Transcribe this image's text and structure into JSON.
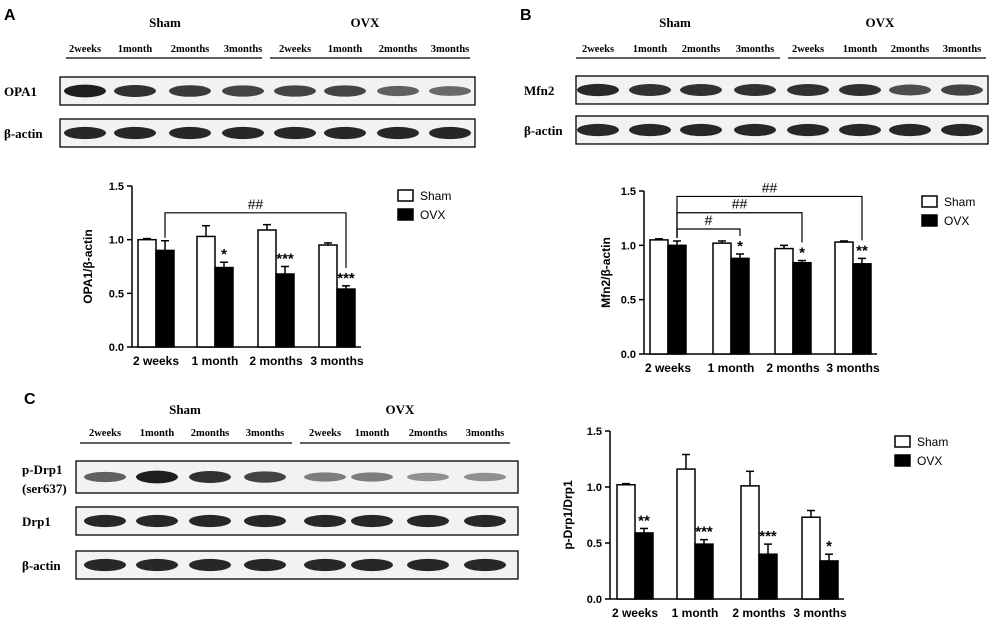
{
  "panels": [
    {
      "letter": "A",
      "group_labels": [
        "Sham",
        "OVX"
      ],
      "lane_labels": [
        "2weeks",
        "1month",
        "2months",
        "3months",
        "2weeks",
        "1month",
        "2months",
        "3months"
      ],
      "blots": [
        {
          "label": "OPA1",
          "intensities": [
            0.95,
            0.85,
            0.8,
            0.75,
            0.75,
            0.75,
            0.6,
            0.55
          ]
        },
        {
          "label": "β-actin",
          "intensities": [
            0.9,
            0.9,
            0.9,
            0.9,
            0.9,
            0.9,
            0.9,
            0.9
          ]
        }
      ]
    },
    {
      "letter": "B",
      "group_labels": [
        "Sham",
        "OVX"
      ],
      "lane_labels": [
        "2weeks",
        "1month",
        "2months",
        "3months",
        "2weeks",
        "1month",
        "2months",
        "3months"
      ],
      "blots": [
        {
          "label": "Mfn2",
          "intensities": [
            0.9,
            0.85,
            0.85,
            0.85,
            0.85,
            0.85,
            0.7,
            0.75
          ]
        },
        {
          "label": "β-actin",
          "intensities": [
            0.9,
            0.9,
            0.9,
            0.9,
            0.9,
            0.9,
            0.9,
            0.9
          ]
        }
      ]
    },
    {
      "letter": "C",
      "group_labels": [
        "Sham",
        "OVX"
      ],
      "lane_labels": [
        "2weeks",
        "1month",
        "2months",
        "3months",
        "2weeks",
        "1month",
        "2months",
        "3months"
      ],
      "blots": [
        {
          "label": "p-Drp1",
          "label2": "(ser637)",
          "intensities": [
            0.6,
            0.95,
            0.85,
            0.75,
            0.45,
            0.45,
            0.35,
            0.35
          ]
        },
        {
          "label": "Drp1",
          "intensities": [
            0.9,
            0.9,
            0.9,
            0.9,
            0.9,
            0.9,
            0.9,
            0.9
          ]
        },
        {
          "label": "β-actin",
          "intensities": [
            0.9,
            0.9,
            0.9,
            0.9,
            0.9,
            0.9,
            0.9,
            0.9
          ]
        }
      ]
    }
  ],
  "chart_data": [
    {
      "type": "bar",
      "title": "",
      "xlabel": "",
      "ylabel": "OPA1/β-actin",
      "ylim": [
        0,
        1.5
      ],
      "yticks": [
        "0.0",
        "0.5",
        "1.0",
        "1.5"
      ],
      "categories": [
        "2 weeks",
        "1 month",
        "2 months",
        "3 months"
      ],
      "series": [
        {
          "name": "Sham",
          "values": [
            1.0,
            1.03,
            1.09,
            0.95
          ],
          "errors": [
            0.01,
            0.1,
            0.05,
            0.02
          ]
        },
        {
          "name": "OVX",
          "values": [
            0.9,
            0.74,
            0.68,
            0.54
          ],
          "errors": [
            0.09,
            0.05,
            0.07,
            0.03
          ],
          "annotations": [
            "",
            "*",
            "***",
            "***"
          ]
        }
      ],
      "brackets": [
        {
          "label": "##",
          "from": 0,
          "to": 3,
          "y": 1.25
        }
      ],
      "legend": "top-right"
    },
    {
      "type": "bar",
      "title": "",
      "xlabel": "",
      "ylabel": "Mfn2/β-actin",
      "ylim": [
        0,
        1.5
      ],
      "yticks": [
        "0.0",
        "0.5",
        "1.0",
        "1.5"
      ],
      "categories": [
        "2 weeks",
        "1 month",
        "2 months",
        "3 months"
      ],
      "series": [
        {
          "name": "Sham",
          "values": [
            1.05,
            1.02,
            0.97,
            1.03
          ],
          "errors": [
            0.01,
            0.02,
            0.03,
            0.01
          ]
        },
        {
          "name": "OVX",
          "values": [
            1.0,
            0.88,
            0.84,
            0.83
          ],
          "errors": [
            0.04,
            0.04,
            0.02,
            0.05
          ],
          "annotations": [
            "",
            "*",
            "*",
            "**"
          ]
        }
      ],
      "brackets": [
        {
          "label": "#",
          "from": 0,
          "to": 1,
          "y": 1.15
        },
        {
          "label": "##",
          "from": 0,
          "to": 2,
          "y": 1.3
        },
        {
          "label": "##",
          "from": 0,
          "to": 3,
          "y": 1.45
        }
      ],
      "legend": "top-right"
    },
    {
      "type": "bar",
      "title": "",
      "xlabel": "",
      "ylabel": "p-Drp1/Drp1",
      "ylim": [
        0,
        1.5
      ],
      "yticks": [
        "0.0",
        "0.5",
        "1.0",
        "1.5"
      ],
      "categories": [
        "2 weeks",
        "1 month",
        "2 months",
        "3 months"
      ],
      "series": [
        {
          "name": "Sham",
          "values": [
            1.02,
            1.16,
            1.01,
            0.73
          ],
          "errors": [
            0.01,
            0.13,
            0.13,
            0.06
          ]
        },
        {
          "name": "OVX",
          "values": [
            0.59,
            0.49,
            0.4,
            0.34
          ],
          "errors": [
            0.04,
            0.04,
            0.09,
            0.06
          ],
          "annotations": [
            "**",
            "***",
            "***",
            "*"
          ]
        }
      ],
      "brackets": [],
      "legend": "top-right"
    }
  ]
}
